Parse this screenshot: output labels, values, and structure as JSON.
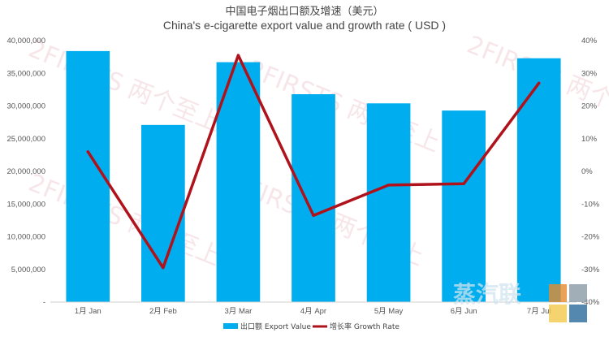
{
  "chart_data": {
    "type": "bar+line",
    "title_cn": "中国电子烟出口额及增速（美元）",
    "title_en": "China's e-cigarette export value and growth rate ( USD )",
    "categories": [
      "1月 Jan",
      "2月 Feb",
      "3月 Mar",
      "4月 Apr",
      "5月 May",
      "6月 Jun",
      "7月 Jul"
    ],
    "series": [
      {
        "name": "出口额 Export Value",
        "type": "bar",
        "axis": "left",
        "color": "#00aeef",
        "values": [
          38400000,
          27100000,
          36700000,
          31800000,
          30400000,
          29300000,
          37300000
        ]
      },
      {
        "name": "增长率 Growth Rate",
        "type": "line",
        "axis": "right",
        "color": "#b0121b",
        "values": [
          6,
          -29.5,
          35.5,
          -13.5,
          -4.2,
          -3.8,
          27
        ]
      }
    ],
    "ylim_left": [
      0,
      40000000
    ],
    "ylim_right": [
      -40,
      40
    ],
    "yticks_left": [
      "-",
      "5,000,000",
      "10,000,000",
      "15,000,000",
      "20,000,000",
      "25,000,000",
      "30,000,000",
      "35,000,000",
      "40,000,000"
    ],
    "yticks_right": [
      "-40%",
      "-30%",
      "-20%",
      "-10%",
      "0%",
      "10%",
      "20%",
      "30%",
      "40%"
    ],
    "legend_position": "bottom",
    "grid": false
  },
  "watermark": {
    "brand_text": "2FIRSTS 两个至上",
    "logo_text": "蒸汽联"
  }
}
